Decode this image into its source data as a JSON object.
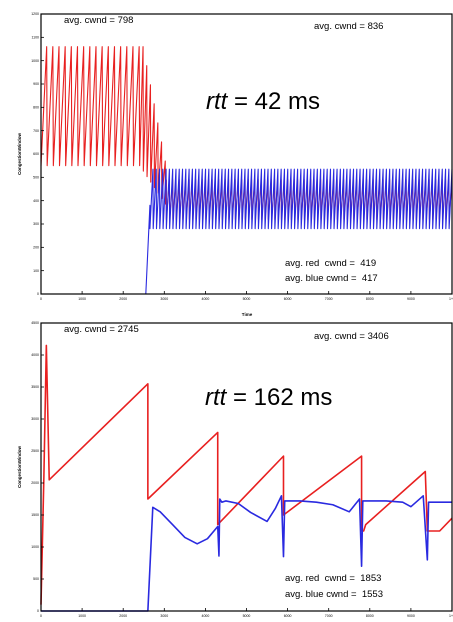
{
  "chart_data": [
    {
      "type": "line",
      "xlabel": "Time",
      "ylabel": "CongestionWindow",
      "xlim": [
        0,
        10000
      ],
      "ylim": [
        0,
        1200
      ],
      "x_ticks": [
        "0",
        "1000",
        "2000",
        "3000",
        "4000",
        "5000",
        "6000",
        "7000",
        "8000",
        "9000",
        "1+1"
      ],
      "y_ticks": [
        "0",
        "100",
        "200",
        "300",
        "400",
        "500",
        "600",
        "700",
        "800",
        "900",
        "1000",
        "1100",
        "1200"
      ],
      "annotations": {
        "top_left": "avg. cwnd = 798",
        "top_right": "avg. cwnd = 836",
        "rtt_prefix": "rtt",
        "rtt_suffix": " = 42 ms",
        "avg_red": "avg. red  cwnd =  419",
        "avg_blue": "avg. blue cwnd =  417"
      },
      "series": [
        {
          "color": "#e82020",
          "style": "sawtooth",
          "segments": [
            {
              "x0": 0,
              "x1": 2400,
              "low": 550,
              "high": 1060,
              "period": 150
            },
            {
              "x0": 2400,
              "x1": 3050,
              "low_from": 550,
              "low_to": 380,
              "high_from": 1060,
              "high_to": 470,
              "period": 90
            },
            {
              "x0": 3050,
              "x1": 10000,
              "low": 320,
              "high": 490,
              "period": 80
            }
          ]
        },
        {
          "color": "#2a2ae0",
          "style": "sawtooth",
          "segments": [
            {
              "x0": 0,
              "x1": 2550,
              "low": 0,
              "high": 0,
              "period": 0
            },
            {
              "x0": 2550,
              "x1": 2650,
              "low": 0,
              "high": 380,
              "period": 0
            },
            {
              "x0": 2650,
              "x1": 10000,
              "low": 280,
              "high": 535,
              "period": 80
            }
          ]
        }
      ]
    },
    {
      "type": "line",
      "xlabel": "",
      "ylabel": "CongestionWindow",
      "xlim": [
        0,
        10000
      ],
      "ylim": [
        0,
        4500
      ],
      "x_ticks": [
        "0",
        "1000",
        "2000",
        "3000",
        "4000",
        "5000",
        "6000",
        "7000",
        "8000",
        "9000",
        "1+1"
      ],
      "y_ticks": [
        "0",
        "500",
        "1000",
        "1500",
        "2000",
        "2500",
        "3000",
        "3500",
        "4000",
        "4500"
      ],
      "annotations": {
        "top_left": "avg. cwnd = 2745",
        "top_right": "avg. cwnd = 3406",
        "rtt_prefix": "rtt",
        "rtt_suffix": " = 162 ms",
        "avg_red": "avg. red  cwnd =  1853",
        "avg_blue": "avg. blue cwnd =  1553"
      },
      "series": [
        {
          "color": "#e82020",
          "points": [
            [
              0,
              100
            ],
            [
              70,
              2100
            ],
            [
              130,
              4150
            ],
            [
              200,
              2050
            ],
            [
              2600,
              3550
            ],
            [
              2600,
              1750
            ],
            [
              4300,
              2790
            ],
            [
              4300,
              1350
            ],
            [
              5900,
              2420
            ],
            [
              5900,
              1500
            ],
            [
              7800,
              2420
            ],
            [
              7800,
              1250
            ],
            [
              7850,
              1250
            ],
            [
              7900,
              1350
            ],
            [
              9350,
              2180
            ],
            [
              9400,
              1250
            ],
            [
              9700,
              1250
            ],
            [
              10000,
              1450
            ]
          ]
        },
        {
          "color": "#2a2ae0",
          "points": [
            [
              0,
              0
            ],
            [
              2580,
              0
            ],
            [
              2600,
              0
            ],
            [
              2720,
              1620
            ],
            [
              2900,
              1550
            ],
            [
              3200,
              1350
            ],
            [
              3500,
              1150
            ],
            [
              3800,
              1050
            ],
            [
              4050,
              1130
            ],
            [
              4300,
              1320
            ],
            [
              4330,
              860
            ],
            [
              4350,
              1750
            ],
            [
              4400,
              1700
            ],
            [
              4500,
              1720
            ],
            [
              4800,
              1680
            ],
            [
              5100,
              1540
            ],
            [
              5500,
              1400
            ],
            [
              5700,
              1600
            ],
            [
              5850,
              1800
            ],
            [
              5900,
              850
            ],
            [
              5930,
              1720
            ],
            [
              6300,
              1720
            ],
            [
              6700,
              1700
            ],
            [
              7100,
              1660
            ],
            [
              7500,
              1550
            ],
            [
              7750,
              1750
            ],
            [
              7800,
              700
            ],
            [
              7830,
              1720
            ],
            [
              8400,
              1720
            ],
            [
              8800,
              1700
            ],
            [
              9000,
              1630
            ],
            [
              9300,
              1800
            ],
            [
              9400,
              800
            ],
            [
              9430,
              1700
            ],
            [
              10000,
              1700
            ]
          ]
        }
      ]
    }
  ]
}
